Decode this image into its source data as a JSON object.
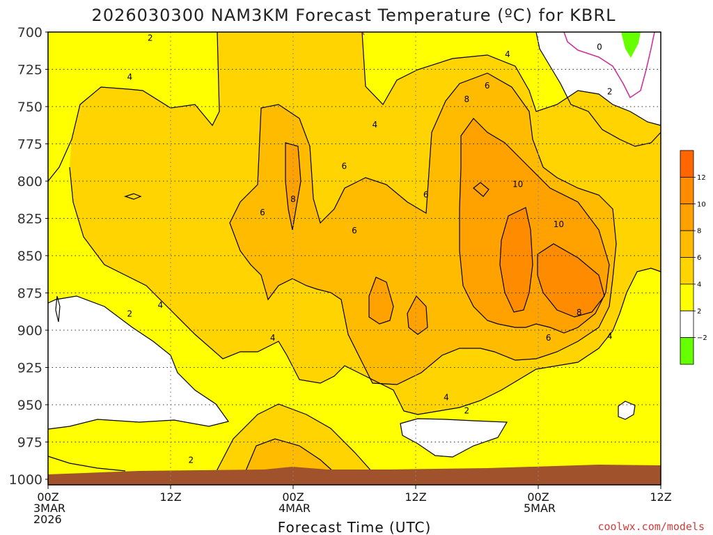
{
  "chart_data": {
    "type": "heatmap",
    "title": "2026030300 NAM3KM Forecast Temperature (ºC) for KBRL",
    "xlabel": "Forecast Time (UTC)",
    "ylabel": "",
    "x_ticks": [
      {
        "label": "00Z",
        "sub": [
          "3MAR",
          "2026"
        ],
        "hour": 0
      },
      {
        "label": "12Z",
        "sub": [],
        "hour": 12
      },
      {
        "label": "00Z",
        "sub": [
          "4MAR"
        ],
        "hour": 24
      },
      {
        "label": "12Z",
        "sub": [],
        "hour": 36
      },
      {
        "label": "00Z",
        "sub": [
          "5MAR"
        ],
        "hour": 48
      },
      {
        "label": "12Z",
        "sub": [],
        "hour": 60
      }
    ],
    "xlim": [
      0,
      60
    ],
    "y_ticks": [
      700,
      725,
      750,
      775,
      800,
      825,
      850,
      875,
      900,
      925,
      950,
      975,
      1000
    ],
    "ylim": [
      700,
      1000
    ],
    "grid": true,
    "colorbar": {
      "ticks": [
        "12",
        "10",
        "8",
        "6",
        "4",
        "2",
        "−2"
      ],
      "bands": [
        {
          "from": 12,
          "to": 14,
          "color": "#ff6600"
        },
        {
          "from": 10,
          "to": 12,
          "color": "#ff8c00"
        },
        {
          "from": 8,
          "to": 10,
          "color": "#ffa200"
        },
        {
          "from": 6,
          "to": 8,
          "color": "#ffbb00"
        },
        {
          "from": 4,
          "to": 6,
          "color": "#ffd400"
        },
        {
          "from": 2,
          "to": 4,
          "color": "#ffff00"
        },
        {
          "from": -2,
          "to": 2,
          "color": "#ffffff"
        },
        {
          "from": -4,
          "to": -2,
          "color": "#66ff00"
        }
      ]
    },
    "contour_labels": [
      {
        "text": "2",
        "hour": 10,
        "p": 705
      },
      {
        "text": "4",
        "hour": 8,
        "p": 731
      },
      {
        "text": "4",
        "hour": 32,
        "p": 763
      },
      {
        "text": "6",
        "hour": 29,
        "p": 791
      },
      {
        "text": "8",
        "hour": 24,
        "p": 813
      },
      {
        "text": "6",
        "hour": 21,
        "p": 822
      },
      {
        "text": "6",
        "hour": 30,
        "p": 834
      },
      {
        "text": "6",
        "hour": 37,
        "p": 810
      },
      {
        "text": "8",
        "hour": 41,
        "p": 746
      },
      {
        "text": "6",
        "hour": 43,
        "p": 737
      },
      {
        "text": "4",
        "hour": 45,
        "p": 716
      },
      {
        "text": "0",
        "hour": 54,
        "p": 711
      },
      {
        "text": "2",
        "hour": 55,
        "p": 741
      },
      {
        "text": "10",
        "hour": 46,
        "p": 803
      },
      {
        "text": "10",
        "hour": 50,
        "p": 830
      },
      {
        "text": "8",
        "hour": 52,
        "p": 889
      },
      {
        "text": "6",
        "hour": 49,
        "p": 906
      },
      {
        "text": "4",
        "hour": 55,
        "p": 905
      },
      {
        "text": "4",
        "hour": 11,
        "p": 884
      },
      {
        "text": "2",
        "hour": 8,
        "p": 890
      },
      {
        "text": "4",
        "hour": 22,
        "p": 906
      },
      {
        "text": "4",
        "hour": 39,
        "p": 946
      },
      {
        "text": "2",
        "hour": 41,
        "p": 955
      },
      {
        "text": "2",
        "hour": 14,
        "p": 988
      }
    ],
    "credit": "coolwx.com/models"
  }
}
